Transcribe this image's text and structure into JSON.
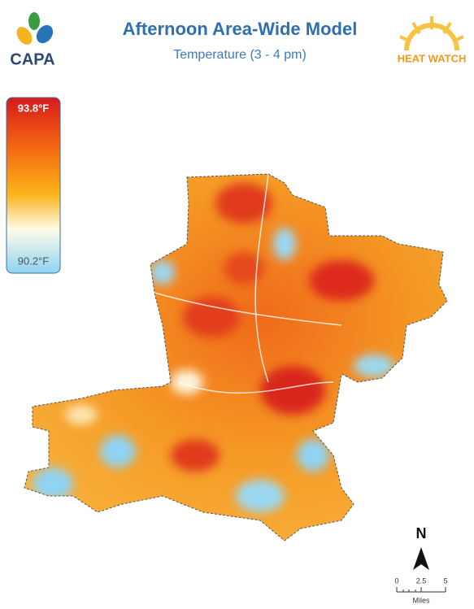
{
  "header": {
    "logo": "CAPA",
    "title": "Afternoon Area-Wide Model",
    "subtitle": "Temperature (3 - 4 pm)",
    "badge": "HEAT WATCH"
  },
  "legend": {
    "max": "93.8°F",
    "min": "90.2°F"
  },
  "compass": {
    "north": "N"
  },
  "scale_bar": {
    "ticks": [
      "0",
      "2.5",
      "5"
    ],
    "unit": "Miles"
  }
}
